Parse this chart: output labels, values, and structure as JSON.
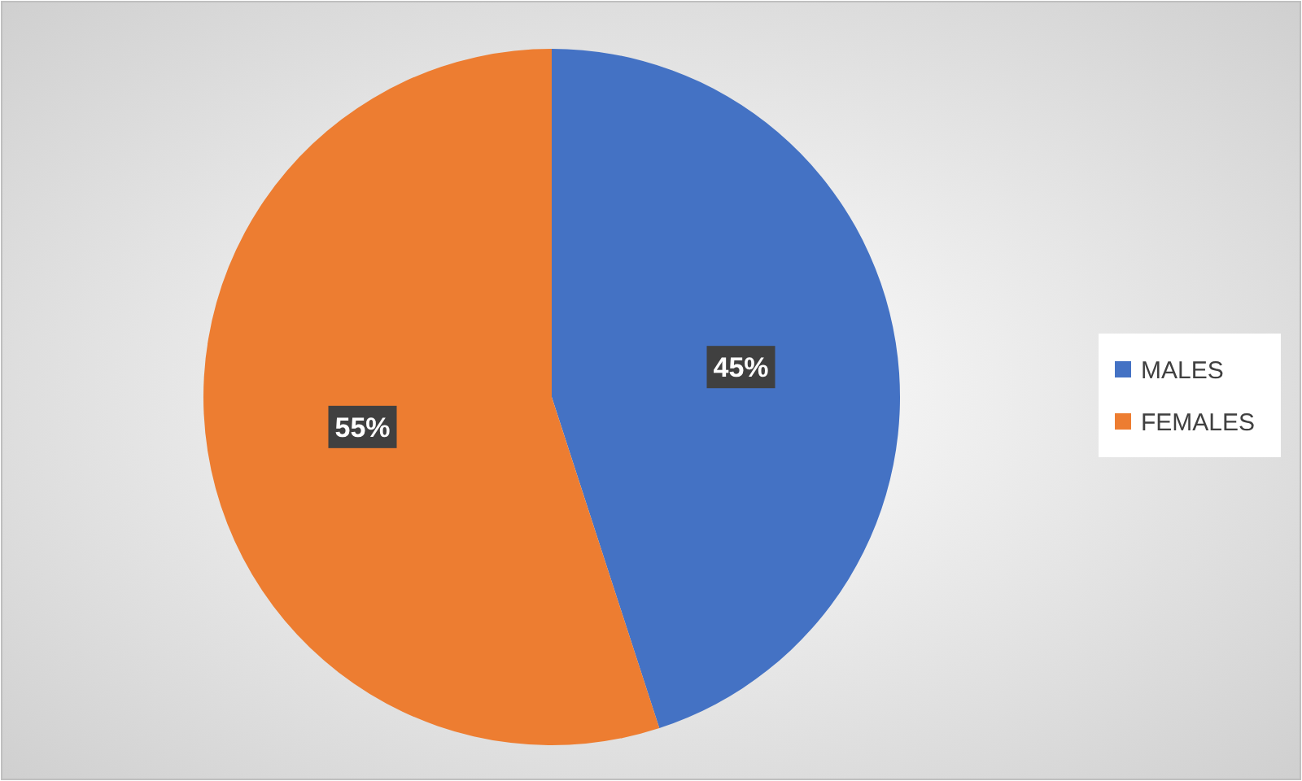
{
  "chart_data": {
    "type": "pie",
    "categories": [
      "MALES",
      "FEMALES"
    ],
    "values": [
      45,
      55
    ],
    "colors": [
      "#4472c4",
      "#ed7d31"
    ],
    "value_labels": [
      "45%",
      "55%"
    ],
    "legend": "right"
  }
}
